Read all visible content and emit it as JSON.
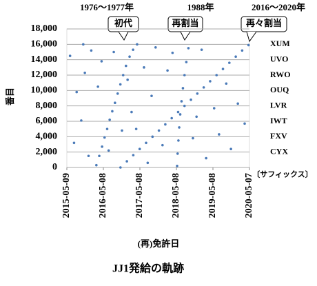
{
  "chart_data": {
    "type": "scatter",
    "title": "JJ1発給の軌跡",
    "xlabel": "(再)免許日",
    "ylabel": "番目",
    "color": "#4a7ab8",
    "grid": true,
    "xlim": [
      "2015-05-09",
      "2020-05-07"
    ],
    "xticks": [
      "2015-05-09",
      "2016-05-08",
      "2017-05-08",
      "2018-05-08",
      "2019-05-08",
      "2020-05-07"
    ],
    "ylim": [
      0,
      18000
    ],
    "yticks": [
      0,
      {
        "value": 2000,
        "label": "2,000"
      },
      {
        "value": 4000,
        "label": "4,000"
      },
      {
        "value": 6000,
        "label": "6,000"
      },
      {
        "value": 8000,
        "label": "8,000"
      },
      {
        "value": 10000,
        "label": "10,000"
      },
      {
        "value": 12000,
        "label": "12,000"
      },
      {
        "value": 14000,
        "label": "14,000"
      },
      {
        "value": 16000,
        "label": "16,000"
      },
      {
        "value": 18000,
        "label": "18,000"
      }
    ],
    "suffix_labels": [
      {
        "value": 16000,
        "label": "XUM"
      },
      {
        "value": 14000,
        "label": "UVO"
      },
      {
        "value": 12000,
        "label": "RWO"
      },
      {
        "value": 10000,
        "label": "OUQ"
      },
      {
        "value": 8000,
        "label": "LVR"
      },
      {
        "value": 6000,
        "label": "IWT"
      },
      {
        "value": 4000,
        "label": "FXV"
      },
      {
        "value": 2000,
        "label": "CYX"
      }
    ],
    "suffix_caption": "〔サフィックス〕",
    "annotations": [
      {
        "period": "1976～1977年",
        "label": "初代"
      },
      {
        "period": "1988年",
        "label": "再割当"
      },
      {
        "period": "2016～2020年",
        "label": "再々割当"
      }
    ],
    "x": [
      "2016-02-28",
      "2016-03-28",
      "2016-04-25",
      "2016-05-20",
      "2016-06-15",
      "2016-07-10",
      "2016-08-05",
      "2016-09-01",
      "2016-09-28",
      "2016-10-25",
      "2016-11-22",
      "2016-12-20",
      "2017-01-25",
      "2017-03-01",
      "2017-04-10",
      "2018-05-15",
      "2018-05-20",
      "2018-05-28",
      "2018-06-05",
      "2018-06-15",
      "2018-06-28",
      "2018-07-12",
      "2018-07-28",
      "2018-08-15",
      "2018-09-05",
      "2016-10-26",
      "2016-12-29",
      "2017-03-03",
      "2017-05-06",
      "2017-07-09",
      "2017-09-11",
      "2017-11-14",
      "2018-01-17",
      "2018-03-22",
      "2018-05-25",
      "2018-07-28",
      "2018-09-30",
      "2018-12-03",
      "2019-02-05",
      "2019-04-10",
      "2019-06-13",
      "2019-08-16",
      "2019-10-19",
      "2019-12-22",
      "2020-02-24",
      "2020-04-28",
      "2015-06-10",
      "2015-07-20",
      "2015-08-15",
      "2015-09-30",
      "2015-11-05",
      "2015-12-12",
      "2016-01-08",
      "2016-03-15",
      "2016-04-20",
      "2016-06-30",
      "2016-08-20",
      "2016-11-10",
      "2017-01-05",
      "2017-02-14",
      "2017-06-18",
      "2017-07-25",
      "2017-09-02",
      "2017-10-12",
      "2017-12-20",
      "2018-02-08",
      "2018-03-30",
      "2018-10-20",
      "2018-11-25",
      "2019-01-15",
      "2019-03-01",
      "2019-05-20",
      "2019-07-08",
      "2019-09-18",
      "2019-11-04",
      "2020-01-12",
      "2020-03-20",
      "2015-10-20",
      "2017-04-01"
    ],
    "values": [
      300,
      1500,
      2700,
      3900,
      5000,
      6200,
      7300,
      8400,
      9600,
      10800,
      12000,
      13200,
      14400,
      15300,
      16000,
      200,
      1800,
      3500,
      5200,
      6900,
      8600,
      10300,
      12000,
      13700,
      15500,
      0,
      800,
      1600,
      2400,
      3200,
      4000,
      4800,
      5600,
      6400,
      7200,
      8000,
      8800,
      9600,
      10400,
      11200,
      12000,
      12800,
      13600,
      14400,
      15200,
      15900,
      14500,
      3200,
      9800,
      6100,
      12300,
      1500,
      15200,
      10500,
      13800,
      2200,
      15000,
      4800,
      11400,
      7200,
      13000,
      600,
      9300,
      15600,
      2900,
      12600,
      14900,
      3800,
      6600,
      15300,
      1200,
      7700,
      4300,
      10900,
      2400,
      8300,
      5700,
      16000,
      5000
    ]
  }
}
